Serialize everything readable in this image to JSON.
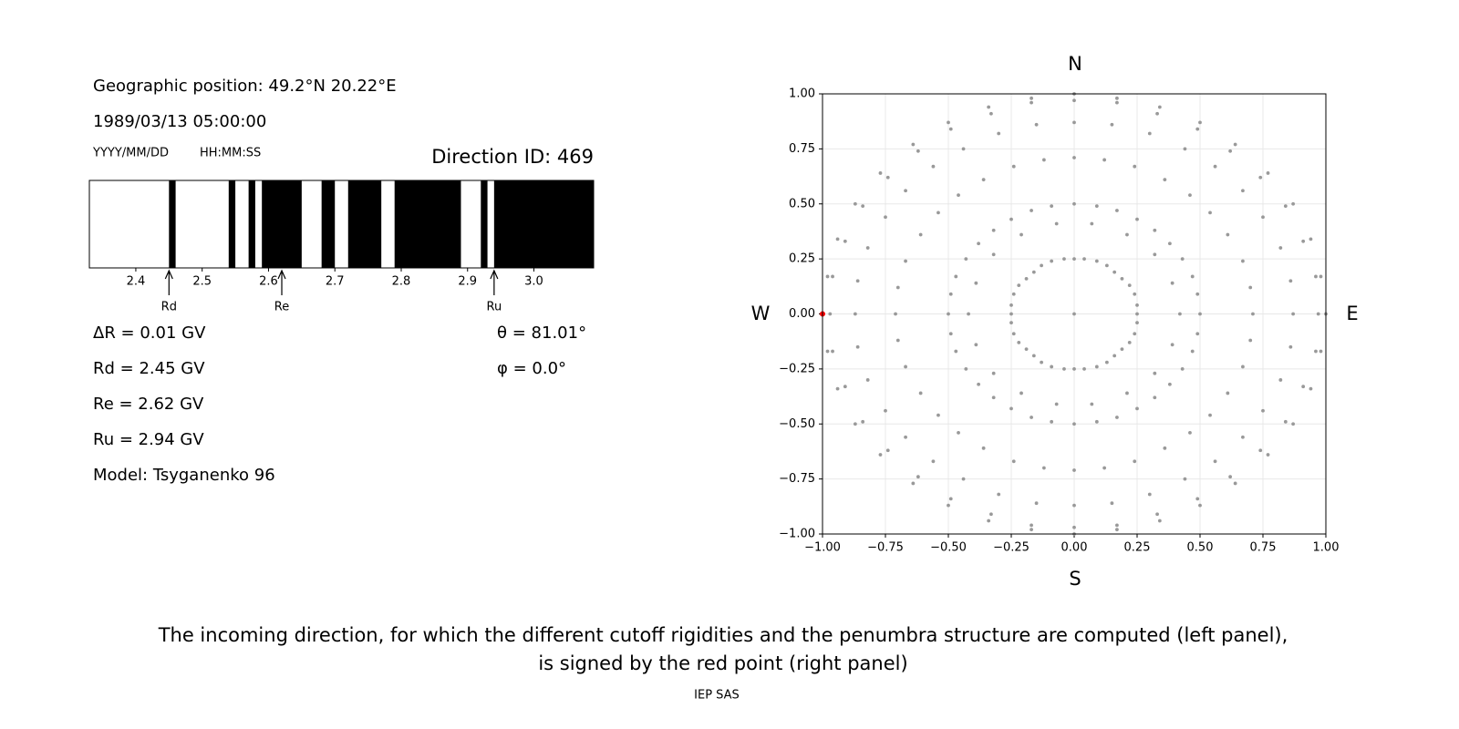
{
  "left_panel": {
    "position": "Geographic position: 49.2°N 20.22°E",
    "datetime": "1989/03/13 05:00:00",
    "date_format": "YYYY/MM/DD",
    "time_format": "HH:MM:SS",
    "direction_id": "Direction ID: 469",
    "delta_r": "ΔR = 0.01 GV",
    "rd": "Rd = 2.45 GV",
    "re": "Re = 2.62 GV",
    "ru": "Ru = 2.94 GV",
    "model": "Model: Tsyganenko 96",
    "theta": "θ = 81.01°",
    "phi": "φ = 0.0°"
  },
  "compass": {
    "n": "N",
    "s": "S",
    "w": "W",
    "e": "E"
  },
  "caption": [
    "The incoming direction, for which the different cutoff rigidities and the penumbra structure are computed (left panel),",
    "is signed by the red point (right panel)"
  ],
  "footer": "IEP SAS",
  "chart_data": [
    {
      "type": "penumbra",
      "xlim": [
        2.33,
        3.09
      ],
      "xticks": [
        2.4,
        2.5,
        2.6,
        2.7,
        2.8,
        2.9,
        {
          "value": 3,
          "label": "3.0"
        }
      ],
      "forbidden_color": "#000000",
      "forbidden": [
        [
          2.45,
          2.46
        ],
        [
          2.54,
          2.55
        ],
        [
          2.57,
          2.58
        ],
        [
          2.59,
          2.65
        ],
        [
          2.68,
          2.7
        ],
        [
          2.72,
          2.77
        ],
        [
          2.79,
          2.89
        ],
        [
          2.92,
          2.93
        ],
        [
          2.94,
          3.09
        ]
      ],
      "markers": [
        {
          "label": "Rd",
          "value": 2.45
        },
        {
          "label": "Re",
          "value": 2.62
        },
        {
          "label": "Ru",
          "value": 2.94
        }
      ]
    },
    {
      "type": "scatter",
      "xlim": [
        -1,
        1
      ],
      "ylim": [
        -1,
        1
      ],
      "xticks": [
        {
          "value": -1,
          "label": "−1.00"
        },
        {
          "value": -0.75,
          "label": "−0.75"
        },
        {
          "value": -0.5,
          "label": "−0.50"
        },
        {
          "value": -0.25,
          "label": "−0.25"
        },
        {
          "value": 0,
          "label": "0.00"
        },
        {
          "value": 0.25,
          "label": "0.25"
        },
        {
          "value": 0.5,
          "label": "0.50"
        },
        {
          "value": 0.75,
          "label": "0.75"
        },
        {
          "value": 1,
          "label": "1.00"
        }
      ],
      "yticks": [
        {
          "value": -1,
          "label": "−1.00"
        },
        {
          "value": -0.75,
          "label": "−0.75"
        },
        {
          "value": -0.5,
          "label": "−0.50"
        },
        {
          "value": -0.25,
          "label": "−0.25"
        },
        {
          "value": 0,
          "label": "0.00"
        },
        {
          "value": 0.25,
          "label": "0.25"
        },
        {
          "value": 0.5,
          "label": "0.50"
        },
        {
          "value": 0.75,
          "label": "0.75"
        },
        {
          "value": 1,
          "label": "1.00"
        }
      ],
      "grid": true,
      "series": [
        {
          "color": "#999999",
          "x": [
            0,
            0.25,
            0.25,
            0.24,
            0.22,
            0.19,
            0.16,
            0.13,
            0.09,
            0.04,
            0,
            -0.04,
            -0.09,
            -0.13,
            -0.16,
            -0.19,
            -0.22,
            -0.24,
            -0.25,
            -0.25,
            -0.25,
            -0.24,
            -0.22,
            -0.19,
            -0.16,
            -0.13,
            -0.09,
            -0.04,
            0,
            0.04,
            0.09,
            0.13,
            0.16,
            0.19,
            0.22,
            0.24,
            0.25,
            0.42,
            0.39,
            0.32,
            0.21,
            0.07,
            -0.07,
            -0.21,
            -0.32,
            -0.39,
            -0.42,
            -0.39,
            -0.32,
            -0.21,
            -0.07,
            0.07,
            0.21,
            0.32,
            0.39,
            0.5,
            0.49,
            0.47,
            0.43,
            0.38,
            0.32,
            0.25,
            0.17,
            0.09,
            0,
            -0.09,
            -0.17,
            -0.25,
            -0.32,
            -0.38,
            -0.43,
            -0.47,
            -0.49,
            -0.5,
            -0.49,
            -0.47,
            -0.43,
            -0.38,
            -0.32,
            -0.25,
            -0.17,
            -0.09,
            0,
            0.09,
            0.17,
            0.25,
            0.32,
            0.38,
            0.43,
            0.47,
            0.49,
            0.71,
            0.7,
            0.67,
            0.61,
            0.54,
            0.46,
            0.36,
            0.24,
            0.12,
            0,
            -0.12,
            -0.24,
            -0.36,
            -0.46,
            -0.54,
            -0.61,
            -0.67,
            -0.7,
            -0.71,
            -0.7,
            -0.67,
            -0.61,
            -0.54,
            -0.46,
            -0.36,
            -0.24,
            -0.12,
            0,
            0.12,
            0.24,
            0.36,
            0.46,
            0.54,
            0.61,
            0.67,
            0.7,
            0.87,
            0.86,
            0.82,
            0.75,
            0.67,
            0.56,
            0.44,
            0.3,
            0.15,
            0,
            -0.15,
            -0.3,
            -0.44,
            -0.56,
            -0.67,
            -0.75,
            -0.82,
            -0.86,
            -0.87,
            -0.86,
            -0.82,
            -0.75,
            -0.67,
            -0.56,
            -0.44,
            -0.3,
            -0.15,
            0,
            0.15,
            0.3,
            0.44,
            0.56,
            0.67,
            0.75,
            0.82,
            0.86,
            0.97,
            0.96,
            0.91,
            0.84,
            0.74,
            0.62,
            0.49,
            0.33,
            0.17,
            0,
            -0.17,
            -0.33,
            -0.49,
            -0.62,
            -0.74,
            -0.84,
            -0.91,
            -0.96,
            -0.97,
            -0.96,
            -0.91,
            -0.84,
            -0.74,
            -0.62,
            -0.49,
            -0.33,
            -0.17,
            0,
            0.17,
            0.33,
            0.49,
            0.62,
            0.74,
            0.84,
            0.91,
            0.96,
            1,
            0.98,
            0.94,
            0.87,
            0.77,
            0.64,
            0.5,
            0.34,
            0.17,
            0,
            -0.17,
            -0.34,
            -0.5,
            -0.64,
            -0.77,
            -0.87,
            -0.94,
            -0.98,
            -1,
            -0.98,
            -0.94,
            -0.87,
            -0.77,
            -0.64,
            -0.5,
            -0.34,
            -0.17,
            0,
            0.17,
            0.34,
            0.5,
            0.64,
            0.77,
            0.87,
            0.94,
            0.98
          ],
          "y": [
            0,
            0,
            0.04,
            0.09,
            0.13,
            0.16,
            0.19,
            0.22,
            0.24,
            0.25,
            0.25,
            0.25,
            0.24,
            0.22,
            0.19,
            0.16,
            0.13,
            0.09,
            0.04,
            0,
            -0.04,
            -0.09,
            -0.13,
            -0.16,
            -0.19,
            -0.22,
            -0.24,
            -0.25,
            -0.25,
            -0.25,
            -0.24,
            -0.22,
            -0.19,
            -0.16,
            -0.13,
            -0.09,
            -0.04,
            0,
            0.14,
            0.27,
            0.36,
            0.41,
            0.41,
            0.36,
            0.27,
            0.14,
            0,
            -0.14,
            -0.27,
            -0.36,
            -0.41,
            -0.41,
            -0.36,
            -0.27,
            -0.14,
            0,
            0.09,
            0.17,
            0.25,
            0.32,
            0.38,
            0.43,
            0.47,
            0.49,
            0.5,
            0.49,
            0.47,
            0.43,
            0.38,
            0.32,
            0.25,
            0.17,
            0.09,
            0,
            -0.09,
            -0.17,
            -0.25,
            -0.32,
            -0.38,
            -0.43,
            -0.47,
            -0.49,
            -0.5,
            -0.49,
            -0.47,
            -0.43,
            -0.38,
            -0.32,
            -0.25,
            -0.17,
            -0.09,
            0,
            0.12,
            0.24,
            0.36,
            0.46,
            0.54,
            0.61,
            0.67,
            0.7,
            0.71,
            0.7,
            0.67,
            0.61,
            0.54,
            0.46,
            0.36,
            0.24,
            0.12,
            0,
            -0.12,
            -0.24,
            -0.36,
            -0.46,
            -0.54,
            -0.61,
            -0.67,
            -0.7,
            -0.71,
            -0.7,
            -0.67,
            -0.61,
            -0.54,
            -0.46,
            -0.36,
            -0.24,
            -0.12,
            0,
            0.15,
            0.3,
            0.44,
            0.56,
            0.67,
            0.75,
            0.82,
            0.86,
            0.87,
            0.86,
            0.82,
            0.75,
            0.67,
            0.56,
            0.44,
            0.3,
            0.15,
            0,
            -0.15,
            -0.3,
            -0.44,
            -0.56,
            -0.67,
            -0.75,
            -0.82,
            -0.86,
            -0.87,
            -0.86,
            -0.82,
            -0.75,
            -0.67,
            -0.56,
            -0.44,
            -0.3,
            -0.15,
            0,
            0.17,
            0.33,
            0.49,
            0.62,
            0.74,
            0.84,
            0.91,
            0.96,
            0.97,
            0.96,
            0.91,
            0.84,
            0.74,
            0.62,
            0.49,
            0.33,
            0.17,
            0,
            -0.17,
            -0.33,
            -0.49,
            -0.62,
            -0.74,
            -0.84,
            -0.91,
            -0.96,
            -0.97,
            -0.96,
            -0.91,
            -0.84,
            -0.74,
            -0.62,
            -0.49,
            -0.33,
            -0.17,
            0,
            0.17,
            0.34,
            0.5,
            0.64,
            0.77,
            0.87,
            0.94,
            0.98,
            1,
            0.98,
            0.94,
            0.87,
            0.77,
            0.64,
            0.5,
            0.34,
            0.17,
            0,
            -0.17,
            -0.34,
            -0.5,
            -0.64,
            -0.77,
            -0.87,
            -0.94,
            -0.98,
            -1,
            -0.98,
            -0.94,
            -0.87,
            -0.77,
            -0.64,
            -0.5,
            -0.34,
            -0.17
          ]
        },
        {
          "color": "#ff0000",
          "x": [
            -1
          ],
          "y": [
            0
          ]
        }
      ]
    }
  ]
}
